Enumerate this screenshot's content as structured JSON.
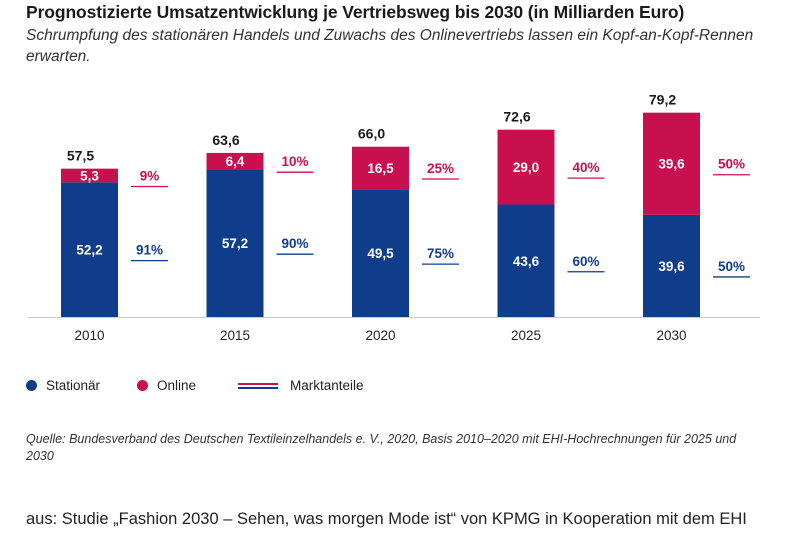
{
  "header": {
    "title": "Prognostizierte Umsatzentwicklung je Vertriebsweg bis 2030 (in Milliarden Euro)",
    "subtitle": "Schrumpfung des stationären Handels und Zuwachs des Onlinevertriebs lassen ein Kopf-an-Kopf-Rennen erwarten."
  },
  "colors": {
    "stationaer": "#0f3d8c",
    "online": "#c8104e",
    "axis": "#cccccc",
    "text": "#1a1a1a"
  },
  "chart_data": {
    "type": "bar",
    "stacked": true,
    "categories": [
      "2010",
      "2015",
      "2020",
      "2025",
      "2030"
    ],
    "series": [
      {
        "name": "Stationär",
        "values": [
          52.2,
          57.2,
          49.5,
          43.6,
          39.6
        ],
        "labels": [
          "52,2",
          "57,2",
          "49,5",
          "43,6",
          "39,6"
        ],
        "color": "#0f3d8c"
      },
      {
        "name": "Online",
        "values": [
          5.3,
          6.4,
          16.5,
          29.0,
          39.6
        ],
        "labels": [
          "5,3",
          "6,4",
          "16,5",
          "29,0",
          "39,6"
        ],
        "color": "#c8104e"
      }
    ],
    "totals": [
      "57,5",
      "63,6",
      "66,0",
      "72,6",
      "79,2"
    ],
    "shares": {
      "online": [
        "9%",
        "10%",
        "25%",
        "40%",
        "50%"
      ],
      "stationaer": [
        "91%",
        "90%",
        "75%",
        "60%",
        "50%"
      ]
    },
    "ylim": [
      0,
      80
    ]
  },
  "legend": {
    "stationaer": "Stationär",
    "online": "Online",
    "marktanteile": "Marktanteile"
  },
  "source": "Quelle: Bundesverband des Deutschen Textileinzelhandels e. V., 2020, Basis 2010–2020 mit EHI-Hochrechnungen für 2025 und 2030",
  "caption": "aus: Studie „Fashion 2030 – Sehen, was morgen Mode ist“ von KPMG in Kooperation mit dem EHI"
}
